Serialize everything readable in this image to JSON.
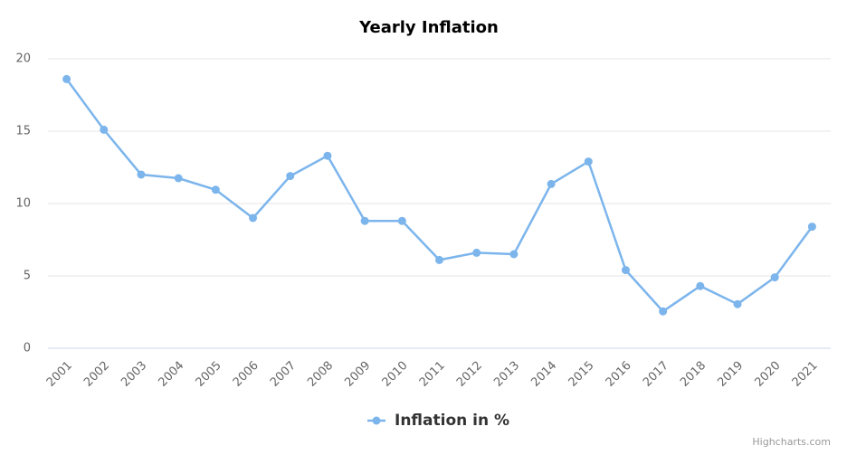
{
  "chart_data": {
    "type": "line",
    "title": "Yearly Inflation",
    "categories": [
      "2001",
      "2002",
      "2003",
      "2004",
      "2005",
      "2006",
      "2007",
      "2008",
      "2009",
      "2010",
      "2011",
      "2012",
      "2013",
      "2014",
      "2015",
      "2016",
      "2017",
      "2018",
      "2019",
      "2020",
      "2021"
    ],
    "series": [
      {
        "name": "Inflation in %",
        "color": "#7cb5ec",
        "values": [
          18.6,
          15.1,
          12.0,
          11.75,
          10.95,
          9.0,
          11.9,
          13.3,
          8.8,
          8.8,
          6.1,
          6.6,
          6.5,
          11.35,
          12.9,
          5.4,
          2.55,
          4.3,
          3.05,
          4.9,
          8.4
        ]
      }
    ],
    "ylim": [
      0,
      20
    ],
    "yticks": [
      0,
      5,
      10,
      15,
      20
    ],
    "grid": true,
    "legend": "bottom",
    "credits": "Highcharts.com"
  }
}
